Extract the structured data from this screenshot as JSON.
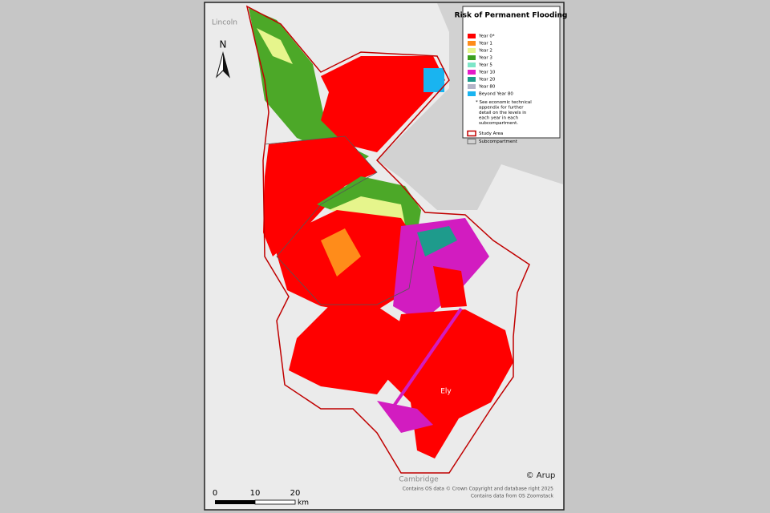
{
  "map": {
    "places": {
      "lincoln": "Lincoln",
      "cambridge": "Cambridge",
      "ely": "Ely"
    },
    "north": "N",
    "legend": {
      "title": "Risk of Permanent Flooding",
      "items": [
        {
          "label": "Year 0*",
          "color": "#ff0000"
        },
        {
          "label": "Year 1",
          "color": "#ff8c1a"
        },
        {
          "label": "Year 2",
          "color": "#e6f58c"
        },
        {
          "label": "Year 3",
          "color": "#3ca01e"
        },
        {
          "label": "Year 5",
          "color": "#7de6c8"
        },
        {
          "label": "Year 10",
          "color": "#e619c8"
        },
        {
          "label": "Year 20",
          "color": "#1e9b8c"
        },
        {
          "label": "Year 80",
          "color": "#b4b4c8"
        },
        {
          "label": "Beyond Year 80",
          "color": "#19b4f0"
        }
      ],
      "note": "* See economic technical appendix for further detail on the levels in each year in each subcompartment.",
      "outlines": [
        {
          "label": "Study Area",
          "color": "#c00000"
        },
        {
          "label": "Subcompartment",
          "color": "#555555"
        }
      ]
    },
    "copyright": "© Arup",
    "credits": [
      "Contains OS data © Crown Copyright and database right 2025",
      "Contains data from OS Zoomstack"
    ],
    "scale": {
      "labels": [
        "0",
        "10",
        "20"
      ],
      "unit": "km"
    }
  }
}
